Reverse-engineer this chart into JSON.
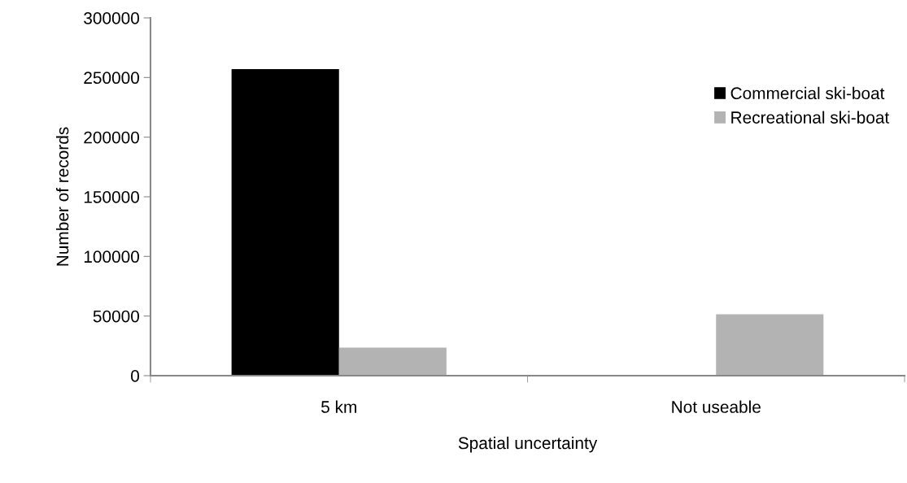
{
  "chart_data": {
    "type": "bar",
    "xlabel": "Spatial uncertainty",
    "ylabel": "Number of records",
    "categories": [
      "5 km",
      "Not useable"
    ],
    "series": [
      {
        "name": "Commercial ski-boat",
        "color": "#000000",
        "values": [
          257000,
          0
        ]
      },
      {
        "name": "Recreational ski-boat",
        "color": "#b3b3b3",
        "values": [
          23500,
          51500
        ]
      }
    ],
    "ylim": [
      0,
      300000
    ],
    "yticks": [
      0,
      50000,
      100000,
      150000,
      200000,
      250000,
      300000
    ],
    "grid": false,
    "legend": "top right"
  }
}
